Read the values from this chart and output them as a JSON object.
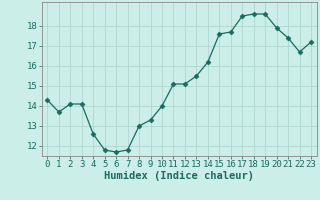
{
  "x": [
    0,
    1,
    2,
    3,
    4,
    5,
    6,
    7,
    8,
    9,
    10,
    11,
    12,
    13,
    14,
    15,
    16,
    17,
    18,
    19,
    20,
    21,
    22,
    23
  ],
  "y": [
    14.3,
    13.7,
    14.1,
    14.1,
    12.6,
    11.8,
    11.7,
    11.8,
    13.0,
    13.3,
    14.0,
    15.1,
    15.1,
    15.5,
    16.2,
    17.6,
    17.7,
    18.5,
    18.6,
    18.6,
    17.9,
    17.4,
    16.7,
    17.2
  ],
  "xlabel": "Humidex (Indice chaleur)",
  "ylim": [
    11.5,
    19.2
  ],
  "xlim": [
    -0.5,
    23.5
  ],
  "yticks": [
    12,
    13,
    14,
    15,
    16,
    17,
    18
  ],
  "xticks": [
    0,
    1,
    2,
    3,
    4,
    5,
    6,
    7,
    8,
    9,
    10,
    11,
    12,
    13,
    14,
    15,
    16,
    17,
    18,
    19,
    20,
    21,
    22,
    23
  ],
  "line_color": "#1a6b5e",
  "marker": "D",
  "marker_size": 2.5,
  "bg_color": "#cceee8",
  "grid_color": "#b0d8d0",
  "label_fontsize": 7.5,
  "tick_fontsize": 6.5,
  "label_color": "#1a6b5e"
}
